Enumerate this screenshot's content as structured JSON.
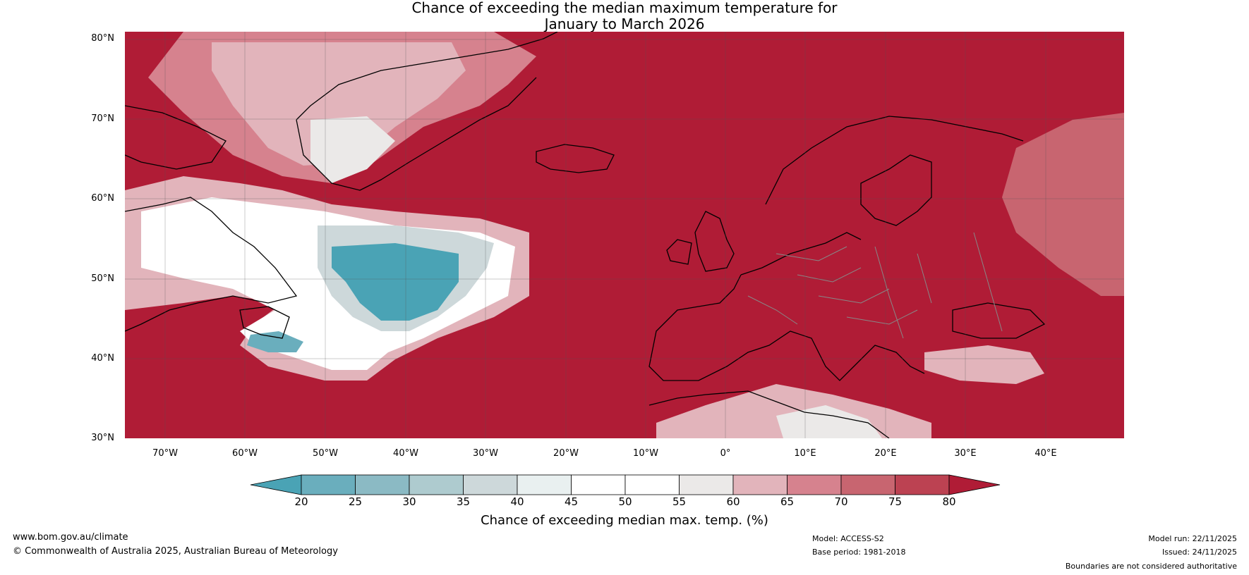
{
  "title": {
    "line1": "Chance of exceeding the median maximum temperature for",
    "line2": "January to March 2026"
  },
  "latitudes": [
    "80°N",
    "70°N",
    "60°N",
    "50°N",
    "40°N",
    "30°N"
  ],
  "longitudes": [
    "70°W",
    "60°W",
    "50°W",
    "40°W",
    "30°W",
    "20°W",
    "10°W",
    "0°",
    "10°E",
    "20°E",
    "30°E",
    "40°E"
  ],
  "colorbar": {
    "ticks": [
      "20",
      "25",
      "30",
      "35",
      "40",
      "45",
      "50",
      "55",
      "60",
      "65",
      "70",
      "75",
      "80"
    ],
    "colors": [
      "#4aa3b5",
      "#6aaebd",
      "#8bbac4",
      "#aecbcf",
      "#cdd8da",
      "#e9f0f0",
      "#ffffff",
      "#ffffff",
      "#ebe9e8",
      "#e2b4bb",
      "#d6828e",
      "#c86570",
      "#bc4252",
      "#b01c36"
    ],
    "label": "Chance of exceeding median max. temp. (%)"
  },
  "footer": {
    "website": "www.bom.gov.au/climate",
    "copyright": "© Commonwealth of Australia 2025, Australian Bureau of Meteorology",
    "model": "Model: ACCESS-S2",
    "base_period": "Base period: 1981-2018",
    "model_run": "Model run: 22/11/2025",
    "issued": "Issued: 24/11/2025",
    "disclaimer": "Boundaries are not considered authoritative"
  },
  "colors": {
    "above": "#b01c36",
    "ocean_text": "#000000"
  }
}
